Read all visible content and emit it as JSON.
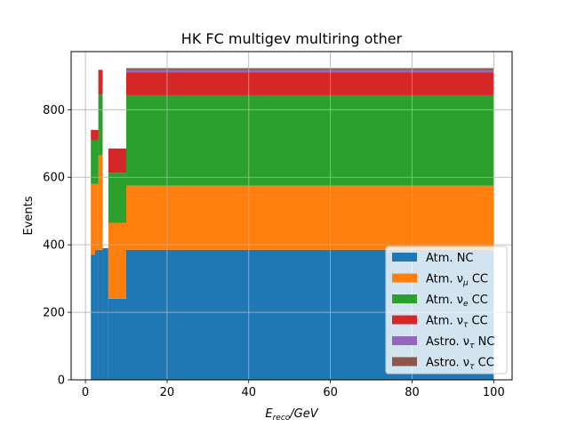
{
  "chart_data": {
    "type": "bar",
    "stacked": true,
    "title": "HK FC multigev multiring other",
    "xlabel": "E_reco/GeV",
    "ylabel": "Events",
    "xlim": [
      -3.5,
      104.5
    ],
    "ylim": [
      0,
      972
    ],
    "xticks": [
      0,
      20,
      40,
      60,
      80,
      100
    ],
    "yticks": [
      0,
      200,
      400,
      600,
      800
    ],
    "grid": true,
    "legend_position": "lower right",
    "bin_edges": [
      1.33,
      2.37,
      3.16,
      4.22,
      5.62,
      7.5,
      10.0,
      100.0
    ],
    "series": [
      {
        "name": "Atm. NC",
        "legend_main": "Atm. NC",
        "legend_sub": "",
        "legend_tail": "",
        "color": "#1f77b4",
        "values": [
          370,
          385,
          385,
          390,
          240,
          240,
          385
        ]
      },
      {
        "name": "Atm. νμ CC",
        "legend_main": "Atm. ν",
        "legend_sub": "μ",
        "legend_tail": " CC",
        "color": "#ff7f0e",
        "values": [
          210,
          195,
          280,
          0,
          225,
          225,
          190
        ]
      },
      {
        "name": "Atm. νe CC",
        "legend_main": "Atm. ν",
        "legend_sub": "e",
        "legend_tail": " CC",
        "color": "#2ca02c",
        "values": [
          130,
          130,
          180,
          0,
          148,
          148,
          268
        ]
      },
      {
        "name": "Atm. ντ CC",
        "legend_main": "Atm. ν",
        "legend_sub": "τ",
        "legend_tail": " CC",
        "color": "#d62728",
        "values": [
          30,
          30,
          73,
          0,
          72,
          72,
          68
        ]
      },
      {
        "name": "Astro. ντ NC",
        "legend_main": "Astro. ν",
        "legend_sub": "τ",
        "legend_tail": " NC",
        "color": "#9467bd",
        "values": [
          0,
          0,
          0,
          0,
          0,
          0,
          6
        ]
      },
      {
        "name": "Astro. ντ CC",
        "legend_main": "Astro. ν",
        "legend_sub": "τ",
        "legend_tail": " CC",
        "color": "#8c564b",
        "values": [
          0,
          0,
          0,
          0,
          0,
          0,
          6
        ]
      }
    ]
  }
}
